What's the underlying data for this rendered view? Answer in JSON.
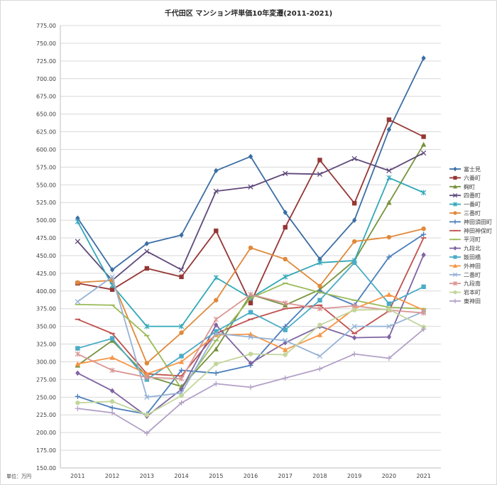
{
  "chart_data": {
    "type": "line",
    "title": "千代田区 マンション坪単価10年変遷(2011-2021)",
    "unit_label": "単位：万円",
    "x": [
      "2011",
      "2012",
      "2013",
      "2014",
      "2015",
      "2016",
      "2017",
      "2018",
      "2019",
      "2020",
      "2021"
    ],
    "ylim": [
      150,
      775
    ],
    "yticks": [
      "150.00",
      "175.00",
      "200.00",
      "225.00",
      "250.00",
      "275.00",
      "300.00",
      "325.00",
      "350.00",
      "375.00",
      "400.00",
      "425.00",
      "450.00",
      "475.00",
      "500.00",
      "525.00",
      "550.00",
      "575.00",
      "600.00",
      "625.00",
      "650.00",
      "675.00",
      "700.00",
      "725.00",
      "750.00",
      "775.00"
    ],
    "grid": true,
    "legend_position": "right",
    "series": [
      {
        "name": "富士見",
        "color": "#3b6ea5",
        "marker": "diamond",
        "values": [
          503,
          430,
          467,
          479,
          570,
          590,
          511,
          445,
          500,
          628,
          729
        ]
      },
      {
        "name": "六番町",
        "color": "#953735",
        "marker": "square",
        "values": [
          411,
          402,
          432,
          420,
          485,
          383,
          490,
          585,
          524,
          642,
          618
        ]
      },
      {
        "name": "麹町",
        "color": "#76923c",
        "marker": "triangle",
        "values": [
          295,
          330,
          280,
          265,
          318,
          395,
          380,
          402,
          443,
          525,
          607
        ]
      },
      {
        "name": "四番町",
        "color": "#5f497a",
        "marker": "x",
        "values": [
          470,
          415,
          456,
          430,
          541,
          547,
          566,
          565,
          587,
          570,
          595
        ]
      },
      {
        "name": "一番町",
        "color": "#31a8b8",
        "marker": "star",
        "values": [
          498,
          408,
          350,
          350,
          419,
          390,
          420,
          440,
          443,
          560,
          539
        ]
      },
      {
        "name": "三番町",
        "color": "#e0893a",
        "marker": "circle",
        "values": [
          412,
          415,
          298,
          341,
          387,
          461,
          445,
          407,
          470,
          476,
          488
        ]
      },
      {
        "name": "神田須田町",
        "color": "#4a7ebb",
        "marker": "plus",
        "values": [
          251,
          235,
          226,
          288,
          284,
          295,
          350,
          400,
          380,
          448,
          480
        ]
      },
      {
        "name": "神田神保町",
        "color": "#c0504d",
        "marker": "dash",
        "values": [
          360,
          340,
          283,
          280,
          340,
          360,
          375,
          380,
          340,
          372,
          475
        ]
      },
      {
        "name": "平河町",
        "color": "#9bbb59",
        "marker": "dash",
        "values": [
          381,
          380,
          337,
          262,
          330,
          390,
          411,
          398,
          387,
          377,
          375
        ]
      },
      {
        "name": "九段北",
        "color": "#8064a2",
        "marker": "diamond",
        "values": [
          284,
          259,
          223,
          261,
          352,
          298,
          327,
          350,
          334,
          335,
          451
        ]
      },
      {
        "name": "飯田橋",
        "color": "#4bacc6",
        "marker": "square",
        "values": [
          319,
          333,
          275,
          308,
          343,
          370,
          345,
          387,
          440,
          382,
          406
        ]
      },
      {
        "name": "外神田",
        "color": "#f79646",
        "marker": "triangle",
        "values": [
          297,
          306,
          283,
          300,
          338,
          339,
          317,
          338,
          375,
          395,
          373
        ]
      },
      {
        "name": "二番町",
        "color": "#95b3d7",
        "marker": "x",
        "values": [
          385,
          420,
          250,
          256,
          340,
          335,
          330,
          308,
          350,
          350,
          371
        ]
      },
      {
        "name": "九段南",
        "color": "#d99694",
        "marker": "star",
        "values": [
          311,
          288,
          278,
          276,
          360,
          395,
          383,
          375,
          379,
          373,
          369
        ]
      },
      {
        "name": "岩本町",
        "color": "#c3d69b",
        "marker": "circle",
        "values": [
          242,
          244,
          225,
          252,
          297,
          311,
          310,
          352,
          373,
          374,
          349
        ]
      },
      {
        "name": "東神田",
        "color": "#b2a1c7",
        "marker": "plus",
        "values": [
          234,
          228,
          199,
          242,
          269,
          264,
          277,
          290,
          311,
          305,
          346
        ]
      }
    ]
  }
}
